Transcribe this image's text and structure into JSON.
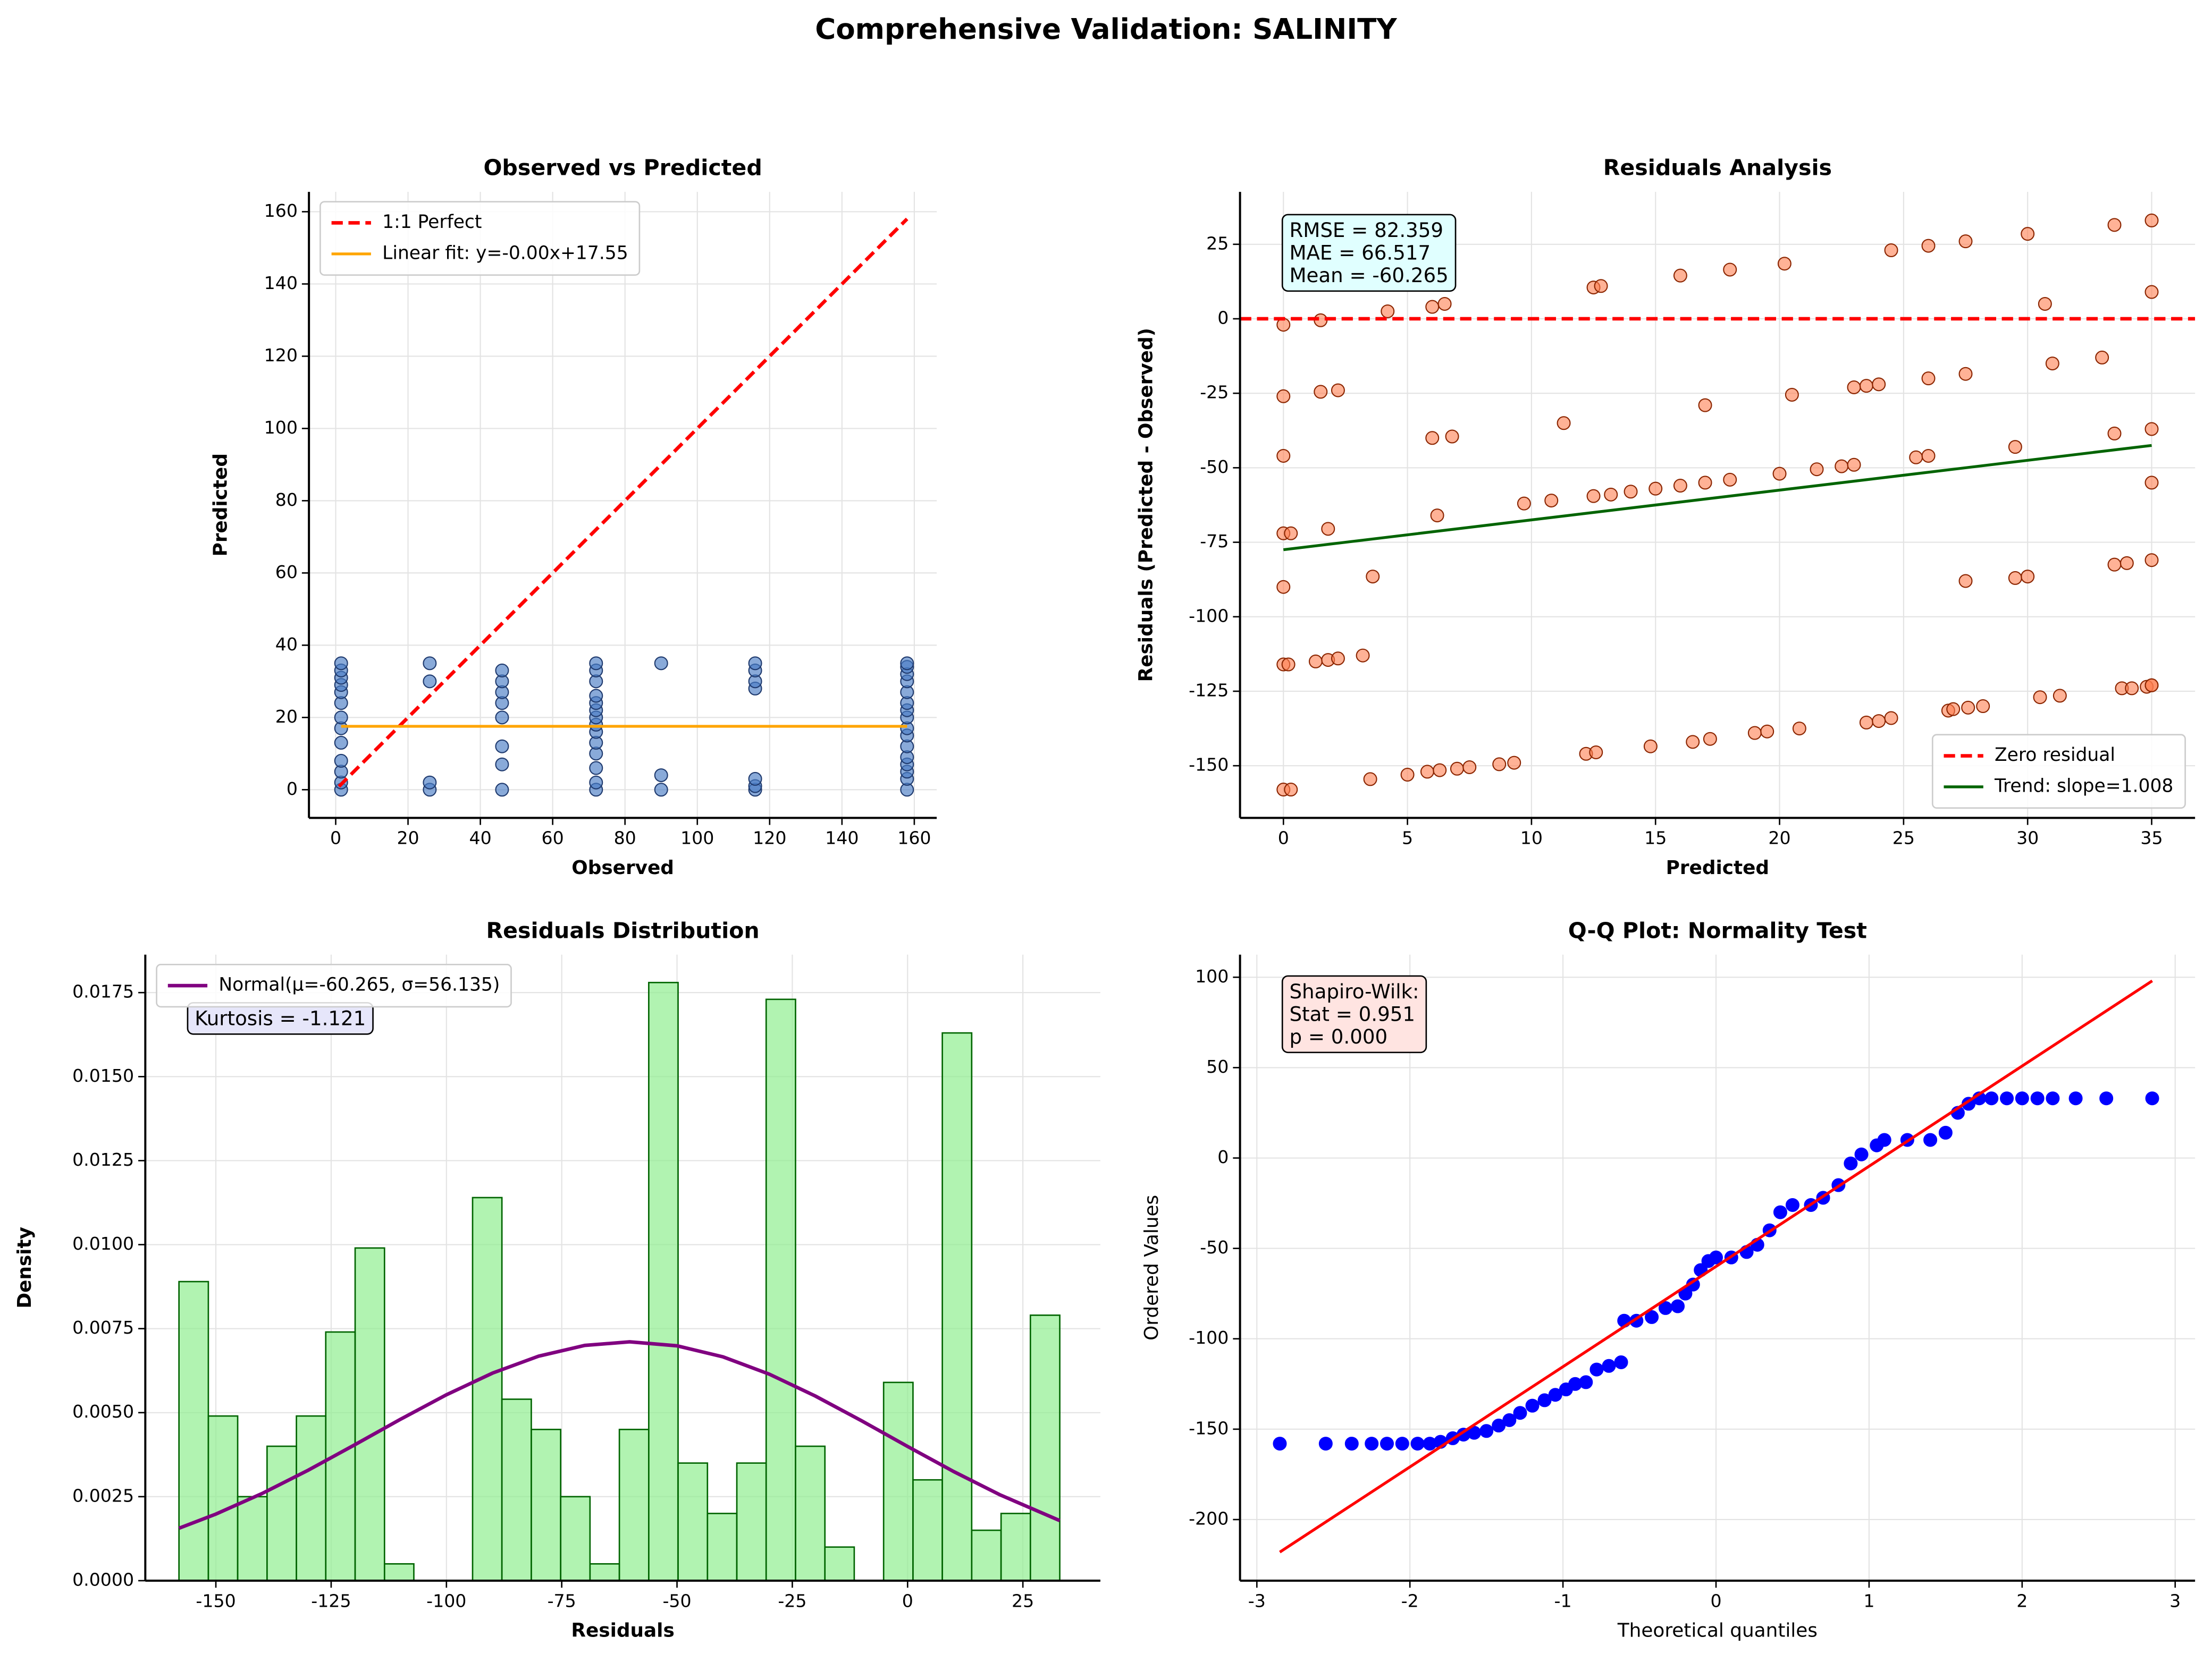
{
  "title": "Comprehensive Validation: SALINITY",
  "chart_data": [
    {
      "type": "scatter",
      "title": "Observed vs Predicted",
      "x_label": "Observed",
      "y_label": "Predicted",
      "axis_label_bold": true,
      "xlim": [
        -7.4,
        166.2
      ],
      "ylim": [
        -7.8,
        165.5
      ],
      "xticks": [
        0,
        20,
        40,
        60,
        80,
        100,
        120,
        140,
        160
      ],
      "yticks": [
        0,
        20,
        40,
        60,
        80,
        100,
        120,
        140,
        160
      ],
      "grid": true,
      "points": {
        "color": "#4a7cc4",
        "edgecolor": "#1f3a6e",
        "opacity": 0.65,
        "radius": 4.5,
        "x": [
          1.5,
          1.5,
          1.5,
          1.5,
          1.5,
          1.5,
          1.5,
          1.5,
          1.5,
          1.5,
          1.5,
          1.5,
          1.5,
          26,
          26,
          26,
          26,
          46,
          46,
          46,
          46,
          46,
          46,
          46,
          46,
          72,
          72,
          72,
          72,
          72,
          72,
          72,
          72,
          72,
          72,
          72,
          72,
          72,
          72,
          90,
          90,
          90,
          116,
          116,
          116,
          116,
          116,
          116,
          116,
          158,
          158,
          158,
          158,
          158,
          158,
          158,
          158,
          158,
          158,
          158,
          158,
          158,
          158,
          158,
          158
        ],
        "values": [
          0,
          2,
          5,
          8,
          13,
          17,
          20,
          24,
          27,
          29,
          31,
          33,
          35,
          0,
          2,
          30,
          35,
          0,
          7,
          12,
          20,
          24,
          27,
          30,
          33,
          0,
          2,
          6,
          10,
          13,
          16,
          18,
          20,
          22,
          24,
          26,
          30,
          33,
          35,
          0,
          4,
          35,
          0,
          1,
          3,
          28,
          30,
          33,
          35,
          0,
          3,
          5,
          7,
          9,
          12,
          15,
          17,
          20,
          22,
          24,
          27,
          30,
          32,
          34,
          35
        ]
      },
      "lines": [
        {
          "name": "1:1 Perfect",
          "color": "#ff0000",
          "dashed": true,
          "width": 2.5,
          "x": [
            0.9,
            158
          ],
          "values": [
            0.9,
            158
          ]
        },
        {
          "name": "Linear fit: y=-0.00x+17.55",
          "color": "#ffa500",
          "dashed": false,
          "width": 2,
          "x": [
            1.5,
            158
          ],
          "values": [
            17.55,
            17.55
          ]
        }
      ],
      "legend": "upper left"
    },
    {
      "type": "scatter",
      "title": "Residuals Analysis",
      "x_label": "Predicted",
      "y_label": "Residuals (Predicted - Observed)",
      "axis_label_bold": true,
      "xlim": [
        -1.75,
        36.75
      ],
      "ylim": [
        -167.5,
        42.6
      ],
      "xticks": [
        0,
        5,
        10,
        15,
        20,
        25,
        30,
        35
      ],
      "yticks": [
        -150,
        -125,
        -100,
        -75,
        -50,
        -25,
        0,
        25
      ],
      "grid": true,
      "points": {
        "color": "#ff7f50",
        "edgecolor": "#8b2500",
        "opacity": 0.6,
        "radius": 4.5,
        "x": [
          0,
          1.5,
          4.2,
          6,
          6.5,
          12.5,
          12.8,
          16,
          18,
          20.2,
          24.5,
          26,
          27.5,
          30,
          33.5,
          35,
          35,
          30.7,
          0,
          1.5,
          2.2,
          17,
          20.5,
          23,
          23.5,
          24,
          26,
          27.5,
          31,
          33,
          0,
          6,
          6.8,
          11.3,
          29.5,
          33.5,
          35,
          0,
          0.3,
          6.2,
          9.7,
          10.8,
          12.5,
          13.2,
          14,
          15,
          16,
          17,
          18,
          20,
          21.5,
          22.5,
          23,
          25.5,
          26,
          35,
          1.8,
          0,
          3.6,
          27.5,
          29.5,
          30,
          33.5,
          34,
          35,
          0,
          0.2,
          1.3,
          1.8,
          2.2,
          3.2,
          33.8,
          34.2,
          34.8,
          35,
          0,
          0.3,
          3.5,
          5,
          5.8,
          6.3,
          7,
          7.5,
          8.7,
          9.3,
          12.2,
          12.6,
          14.8,
          16.5,
          17.2,
          19,
          19.5,
          20.8,
          23.5,
          24,
          24.5,
          26.8,
          27,
          27.6,
          28.2,
          30.5,
          31.3,
          35
        ],
        "values": [
          -2,
          -0.5,
          2.5,
          4,
          5,
          10.5,
          11,
          14.5,
          16.5,
          18.5,
          23,
          24.5,
          26,
          28.5,
          31.5,
          33,
          9,
          5,
          -26,
          -24.5,
          -24,
          -29,
          -25.5,
          -23,
          -22.5,
          -22,
          -20,
          -18.5,
          -15,
          -13,
          -46,
          -40,
          -39.5,
          -35,
          -43,
          -38.5,
          -37,
          -72,
          -72,
          -66,
          -62,
          -61,
          -59.5,
          -59,
          -58,
          -57,
          -56,
          -55,
          -54,
          -52,
          -50.5,
          -49.5,
          -49,
          -46.5,
          -46,
          -55,
          -70.5,
          -90,
          -86.5,
          -88,
          -87,
          -86.5,
          -82.5,
          -82,
          -81,
          -116,
          -116,
          -115,
          -114.5,
          -114,
          -113,
          -124,
          -124,
          -123.5,
          -123,
          -158,
          -158,
          -154.5,
          -153,
          -152,
          -151.5,
          -151,
          -150.5,
          -149.5,
          -149,
          -146,
          -145.5,
          -143.5,
          -142,
          -141,
          -139,
          -138.5,
          -137.5,
          -135.5,
          -135,
          -134,
          -131.5,
          -131,
          -130.5,
          -130,
          -127,
          -126.5,
          -123
        ]
      },
      "lines": [
        {
          "name": "Zero residual",
          "color": "#ff0000",
          "dashed": true,
          "width": 2.5,
          "x": [
            -1.75,
            36.75
          ],
          "values": [
            0,
            0
          ]
        },
        {
          "name": "Trend: slope=1.008",
          "color": "#006400",
          "dashed": false,
          "width": 2,
          "x": [
            0,
            35
          ],
          "values": [
            -77.5,
            -42.5
          ]
        }
      ],
      "legend": "lower right",
      "text_box": {
        "lines": [
          "RMSE = 82.359",
          "MAE = 66.517",
          "Mean = -60.265"
        ],
        "color": "#e0ffff"
      }
    },
    {
      "type": "histogram",
      "title": "Residuals Distribution",
      "x_label": "Residuals",
      "y_label": "Density",
      "axis_label_bold": true,
      "xlim": [
        -165.3,
        41.8
      ],
      "ylim": [
        0,
        0.01863
      ],
      "xticks": [
        -150,
        -125,
        -100,
        -75,
        -50,
        -25,
        0,
        25
      ],
      "yticks": [
        {
          "value": 0,
          "label": "0.0000"
        },
        {
          "value": 0.0025,
          "label": "0.0025"
        },
        {
          "value": 0.005,
          "label": "0.0050"
        },
        {
          "value": 0.0075,
          "label": "0.0075"
        },
        {
          "value": 0.01,
          "label": "0.0100"
        },
        {
          "value": 0.0125,
          "label": "0.0125"
        },
        {
          "value": 0.015,
          "label": "0.0150"
        },
        {
          "value": 0.0175,
          "label": "0.0175"
        }
      ],
      "grid": true,
      "color": "#90ee90",
      "edgecolor": "#006400",
      "bins": [
        -158.0,
        -151.63,
        -145.27,
        -138.9,
        -132.53,
        -126.17,
        -119.8,
        -113.43,
        -107.07,
        -100.7,
        -94.33,
        -87.97,
        -81.6,
        -75.23,
        -68.87,
        -62.5,
        -56.13,
        -49.77,
        -43.4,
        -37.03,
        -30.67,
        -24.3,
        -17.93,
        -11.57,
        -5.2,
        1.17,
        7.53,
        13.9,
        20.27,
        26.63,
        33.0
      ],
      "values": [
        0.0089,
        0.0049,
        0.0025,
        0.004,
        0.0049,
        0.0074,
        0.0099,
        0.0005,
        0,
        0,
        0.0114,
        0.0054,
        0.0045,
        0.0025,
        0.0005,
        0.0045,
        0.0178,
        0.0035,
        0.002,
        0.0035,
        0.0173,
        0.004,
        0.001,
        0,
        0.0059,
        0.003,
        0.0163,
        0.0015,
        0.002,
        0.0079
      ],
      "lines": [
        {
          "name": "Normal(μ=-60.265, σ=56.135)",
          "color": "#800080",
          "dashed": false,
          "width": 2.5,
          "x": [
            -158,
            -150,
            -140,
            -130,
            -120,
            -110,
            -100,
            -90,
            -80,
            -70,
            -60.265,
            -50,
            -40,
            -30,
            -20,
            -10,
            0,
            10,
            20,
            33
          ],
          "values": [
            0.00156,
            0.001981,
            0.002592,
            0.003285,
            0.004035,
            0.0048,
            0.005532,
            0.006177,
            0.006681,
            0.007001,
            0.007107,
            0.006989,
            0.006659,
            0.006146,
            0.005494,
            0.00476,
            0.003994,
            0.003247,
            0.002557,
            0.001787
          ]
        }
      ],
      "legend": "upper left",
      "text_box": {
        "lines": [
          "Kurtosis = -1.121"
        ],
        "color": "#e6e6fa"
      }
    },
    {
      "type": "scatter",
      "title": "Q-Q Plot: Normality Test",
      "x_label": "Theoretical quantiles",
      "y_label": "Ordered Values",
      "axis_label_bold": false,
      "xlim": [
        -3.11,
        3.13
      ],
      "ylim": [
        -233.8,
        112.5
      ],
      "xticks": [
        -3,
        -2,
        -1,
        0,
        1,
        2,
        3
      ],
      "yticks": [
        -200,
        -150,
        -100,
        -50,
        0,
        50,
        100
      ],
      "grid": true,
      "points": {
        "color": "#0000ff",
        "edgecolor": "#0000ff",
        "opacity": 1,
        "radius": 4.5,
        "x": [
          -2.85,
          -2.55,
          -2.38,
          -2.25,
          -2.15,
          -2.05,
          -1.95,
          -1.87,
          -1.8,
          -1.72,
          -1.65,
          -1.58,
          -1.5,
          -1.42,
          -1.35,
          -1.28,
          -1.2,
          -1.12,
          -1.05,
          -0.98,
          -0.92,
          -0.85,
          -0.78,
          -0.7,
          -0.62,
          -0.6,
          -0.52,
          -0.42,
          -0.33,
          -0.25,
          -0.2,
          -0.15,
          -0.1,
          -0.05,
          0,
          0.1,
          0.2,
          0.27,
          0.35,
          0.42,
          0.5,
          0.62,
          0.7,
          0.8,
          0.88,
          0.95,
          1.05,
          1.1,
          1.25,
          1.4,
          1.5,
          1.58,
          1.65,
          1.72,
          1.8,
          1.9,
          2,
          2.1,
          2.2,
          2.35,
          2.55,
          2.85
        ],
        "values": [
          -158,
          -158,
          -158,
          -158,
          -158,
          -158,
          -158,
          -158,
          -157,
          -155,
          -153,
          -152,
          -151,
          -148,
          -145,
          -141,
          -137,
          -134,
          -131,
          -128,
          -125,
          -124,
          -117,
          -115,
          -113,
          -90,
          -90,
          -88,
          -83,
          -82,
          -75,
          -70,
          -62,
          -57,
          -55,
          -55,
          -52,
          -48,
          -40,
          -30,
          -26,
          -26,
          -22,
          -15,
          -3,
          2,
          7,
          10,
          10,
          10,
          14,
          25,
          30,
          33,
          33,
          33,
          33,
          33,
          33,
          33,
          33,
          33
        ]
      },
      "lines": [
        {
          "color": "#ff0000",
          "dashed": false,
          "width": 2,
          "x": [
            -2.85,
            2.85
          ],
          "values": [
            -218,
            98
          ]
        }
      ],
      "text_box": {
        "lines": [
          "Shapiro-Wilk:",
          "Stat = 0.951",
          "p = 0.000"
        ],
        "color": "#ffe4e1"
      }
    }
  ]
}
